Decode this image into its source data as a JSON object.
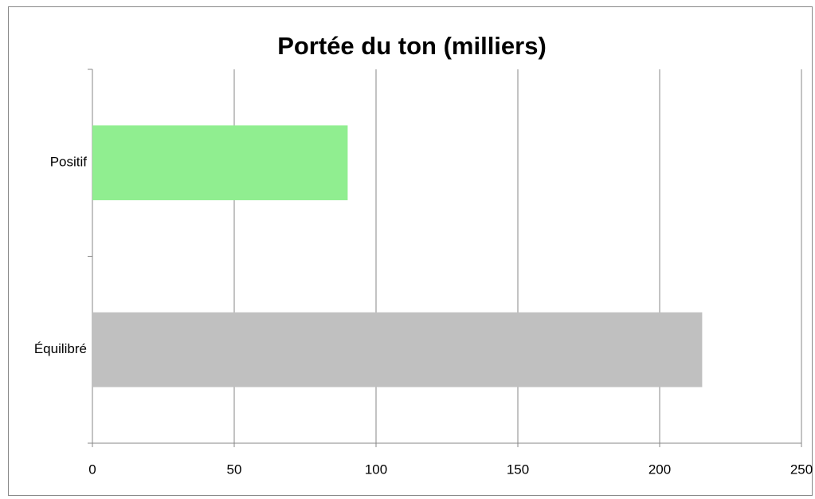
{
  "chart_data": {
    "type": "bar",
    "orientation": "horizontal",
    "title": "Portée du ton (milliers)",
    "categories": [
      "Positif",
      "Équilibré"
    ],
    "values": [
      90,
      215
    ],
    "colors": [
      "#90ee90",
      "#c0c0c0"
    ],
    "xlim": [
      0,
      250
    ],
    "xticks": [
      0,
      50,
      100,
      150,
      200,
      250
    ],
    "grid": true
  }
}
